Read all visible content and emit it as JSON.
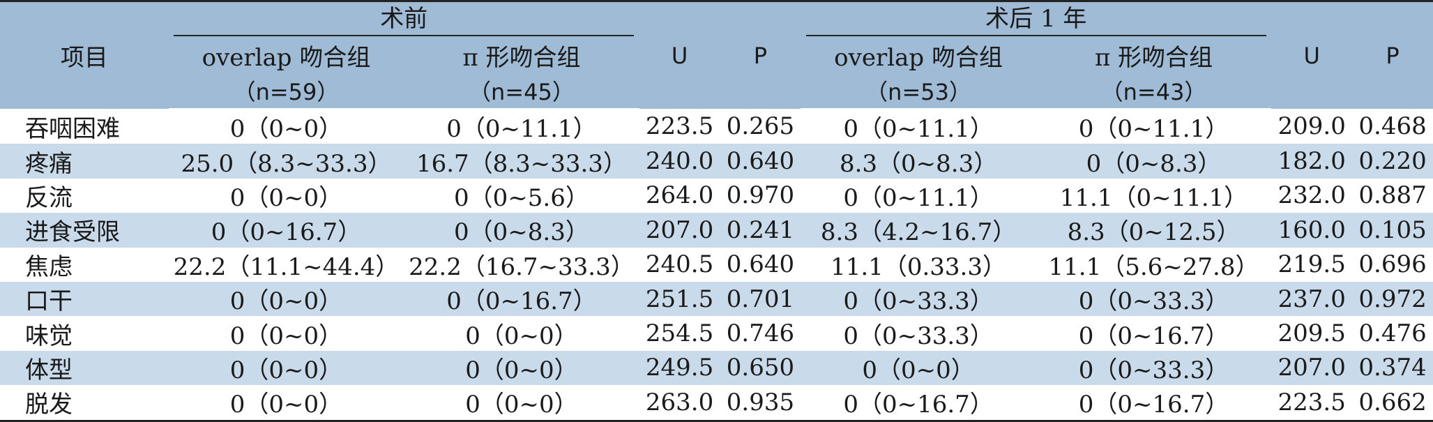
{
  "header": {
    "item_label": "项目",
    "pre_label": "术前",
    "post_label": "术后 1 年",
    "u_label": "U",
    "p_label": "P",
    "pre_overlap": "overlap 吻合组",
    "pre_pi": "π 形吻合组",
    "post_overlap": "overlap 吻合组",
    "post_pi": "π 形吻合组",
    "pre_overlap_n": "（n=59）",
    "pre_pi_n": "（n=45）",
    "post_overlap_n": "（n=53）",
    "post_pi_n": "（n=43）"
  },
  "rows": [
    {
      "item": "吞咽困难",
      "pre_overlap": "0（0~0）",
      "pre_pi": "0（0~11.1）",
      "pre_u": "223.5",
      "pre_p": "0.265",
      "post_overlap": "0（0~11.1）",
      "post_pi": "0（0~11.1）",
      "post_u": "209.0",
      "post_p": "0.468"
    },
    {
      "item": "疼痛",
      "pre_overlap": "25.0（8.3~33.3）",
      "pre_pi": "16.7（8.3~33.3）",
      "pre_u": "240.0",
      "pre_p": "0.640",
      "post_overlap": "8.3（0~8.3）",
      "post_pi": "0（0~8.3）",
      "post_u": "182.0",
      "post_p": "0.220"
    },
    {
      "item": "反流",
      "pre_overlap": "0（0~0）",
      "pre_pi": "0（0~5.6）",
      "pre_u": "264.0",
      "pre_p": "0.970",
      "post_overlap": "0（0~11.1）",
      "post_pi": "11.1（0~11.1）",
      "post_u": "232.0",
      "post_p": "0.887"
    },
    {
      "item": "进食受限",
      "pre_overlap": "0（0~16.7）",
      "pre_pi": "0（0~8.3）",
      "pre_u": "207.0",
      "pre_p": "0.241",
      "post_overlap": "8.3（4.2~16.7）",
      "post_pi": "8.3（0~12.5）",
      "post_u": "160.0",
      "post_p": "0.105"
    },
    {
      "item": "焦虑",
      "pre_overlap": "22.2（11.1~44.4）",
      "pre_pi": "22.2（16.7~33.3）",
      "pre_u": "240.5",
      "pre_p": "0.640",
      "post_overlap": "11.1（0.33.3）",
      "post_pi": "11.1（5.6~27.8）",
      "post_u": "219.5",
      "post_p": "0.696"
    },
    {
      "item": "口干",
      "pre_overlap": "0（0~0）",
      "pre_pi": "0（0~16.7）",
      "pre_u": "251.5",
      "pre_p": "0.701",
      "post_overlap": "0（0~33.3）",
      "post_pi": "0（0~33.3）",
      "post_u": "237.0",
      "post_p": "0.972"
    },
    {
      "item": "味觉",
      "pre_overlap": "0（0~0）",
      "pre_pi": "0（0~0）",
      "pre_u": "254.5",
      "pre_p": "0.746",
      "post_overlap": "0（0~33.3）",
      "post_pi": "0（0~16.7）",
      "post_u": "209.5",
      "post_p": "0.476"
    },
    {
      "item": "体型",
      "pre_overlap": "0（0~0）",
      "pre_pi": "0（0~0）",
      "pre_u": "249.5",
      "pre_p": "0.650",
      "post_overlap": "0（0~0）",
      "post_pi": "0（0~33.3）",
      "post_u": "207.0",
      "post_p": "0.374"
    },
    {
      "item": "脱发",
      "pre_overlap": "0（0~0）",
      "pre_pi": "0（0~0）",
      "pre_u": "263.0",
      "pre_p": "0.935",
      "post_overlap": "0（0~16.7）",
      "post_pi": "0（0~16.7）",
      "post_u": "223.5",
      "post_p": "0.662"
    }
  ]
}
